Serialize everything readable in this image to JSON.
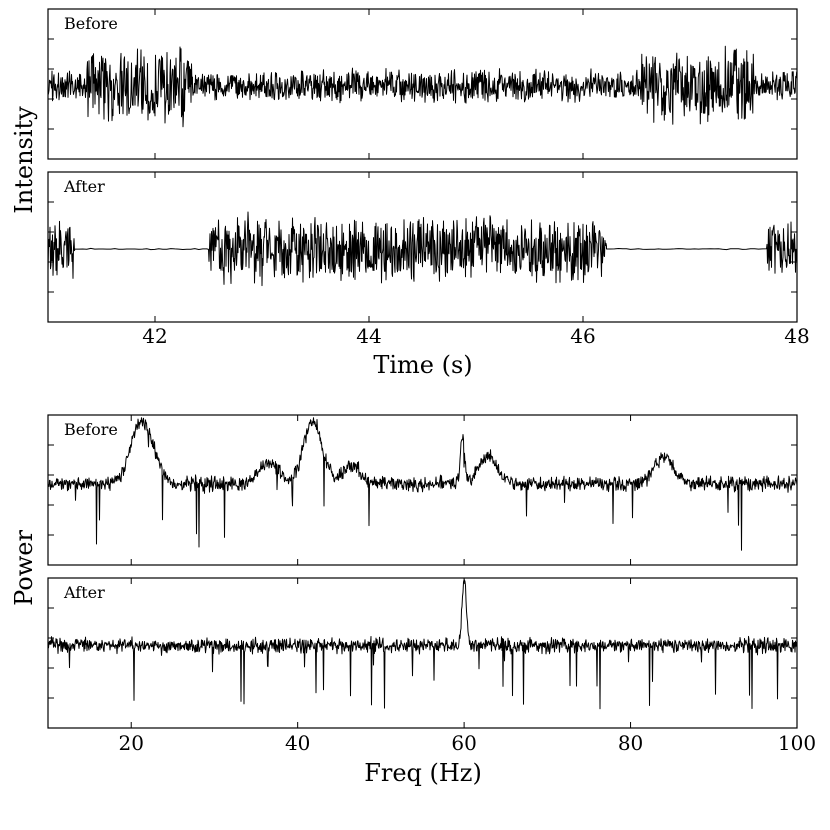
{
  "chart_data": [
    {
      "type": "line",
      "group": "time",
      "xlabel": "Time (s)",
      "ylabel": "Intensity",
      "xlim": [
        41,
        48
      ],
      "xticks": [
        42,
        44,
        46,
        48
      ],
      "panels": [
        {
          "label": "Before",
          "series": [
            {
              "kind": "dense-signal",
              "baseline": 0.0,
              "segments": [
                {
                  "x": [
                    41.0,
                    41.35
                  ],
                  "amplitude": 0.22
                },
                {
                  "x": [
                    41.35,
                    42.35
                  ],
                  "amplitude": 0.55
                },
                {
                  "x": [
                    42.35,
                    43.0
                  ],
                  "amplitude": 0.2
                },
                {
                  "x": [
                    43.0,
                    46.2
                  ],
                  "amplitude": 0.24
                },
                {
                  "x": [
                    46.2,
                    46.55
                  ],
                  "amplitude": 0.22
                },
                {
                  "x": [
                    46.55,
                    47.6
                  ],
                  "amplitude": 0.55
                },
                {
                  "x": [
                    47.6,
                    48.0
                  ],
                  "amplitude": 0.22
                }
              ]
            }
          ]
        },
        {
          "label": "After",
          "series": [
            {
              "kind": "dense-signal",
              "baseline": 0.0,
              "segments": [
                {
                  "x": [
                    41.0,
                    41.25
                  ],
                  "amplitude": 0.42
                },
                {
                  "x": [
                    41.25,
                    42.5
                  ],
                  "amplitude": 0.0
                },
                {
                  "x": [
                    42.5,
                    46.22
                  ],
                  "amplitude": 0.5
                },
                {
                  "x": [
                    46.22,
                    47.72
                  ],
                  "amplitude": 0.0
                },
                {
                  "x": [
                    47.72,
                    48.0
                  ],
                  "amplitude": 0.42
                }
              ]
            }
          ]
        }
      ]
    },
    {
      "type": "line",
      "group": "freq",
      "xlabel": "Freq (Hz)",
      "ylabel": "Power",
      "xlim": [
        10,
        100
      ],
      "xticks": [
        20,
        40,
        60,
        80,
        100
      ],
      "panels": [
        {
          "label": "Before",
          "series": [
            {
              "kind": "spectrum",
              "baseline": 0.1,
              "noise": 0.1,
              "peaks": [
                {
                  "x": 20.8,
                  "height": 0.3
                },
                {
                  "x": 22.2,
                  "height": 0.2
                },
                {
                  "x": 36.5,
                  "height": 0.15
                },
                {
                  "x": 41.8,
                  "height": 0.42
                },
                {
                  "x": 46.5,
                  "height": 0.12
                },
                {
                  "x": 59.8,
                  "height": 0.3
                },
                {
                  "x": 62.8,
                  "height": 0.18
                },
                {
                  "x": 84.0,
                  "height": 0.18
                }
              ]
            }
          ]
        },
        {
          "label": "After",
          "series": [
            {
              "kind": "spectrum",
              "baseline": 0.15,
              "noise": 0.1,
              "peaks": [
                {
                  "x": 60.0,
                  "height": 0.45
                }
              ]
            }
          ]
        }
      ]
    }
  ]
}
